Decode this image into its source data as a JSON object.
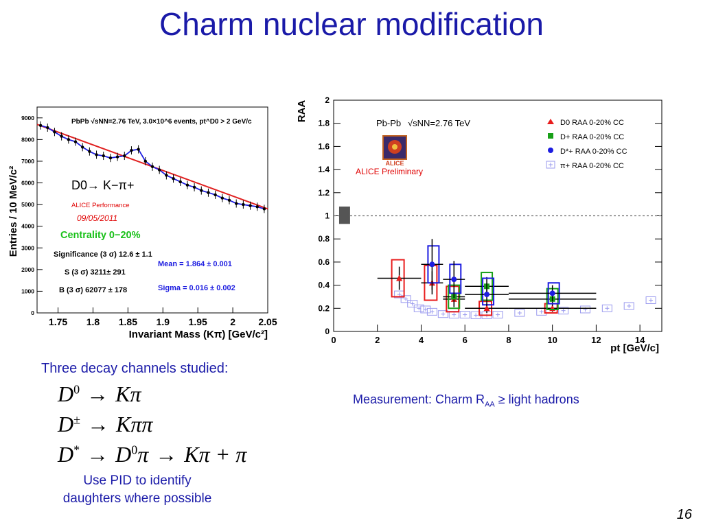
{
  "slide": {
    "title": "Charm nuclear modification",
    "page_number": "16",
    "channels_heading": "Three decay channels studied:",
    "measurement_prefix": "Measurement: Charm R",
    "measurement_sub": "AA",
    "measurement_suffix": " ≥ light hadrons",
    "pid_line1": "Use PID to identify",
    "pid_line2": "daughters where possible",
    "equations": [
      {
        "lhs": "D",
        "lhs_sup": "0",
        "rhs": "Kπ"
      },
      {
        "lhs": "D",
        "lhs_sup": "±",
        "rhs": "Kππ"
      },
      {
        "lhs": "D",
        "lhs_sup": "*",
        "rhs": "D",
        "rhs_sup": "0",
        "rhs_tail": "π",
        "rhs2": "Kπ + π"
      }
    ]
  },
  "chart_data": [
    {
      "type": "scatter",
      "title": "PbPb √sNN=2.76 TeV, 3.0×10^6 events, pt^D0 > 2 GeV/c",
      "xlabel": "Invariant Mass (Kπ) [GeV/c²]",
      "ylabel": "Entries / 10 MeV/c²",
      "xlim": [
        1.72,
        2.05
      ],
      "ylim": [
        0,
        9500
      ],
      "xticks": [
        "1.75",
        "1.8",
        "1.85",
        "1.9",
        "1.95",
        "2",
        "2.05"
      ],
      "yticks": [
        "0",
        "1000",
        "2000",
        "3000",
        "4000",
        "5000",
        "6000",
        "7000",
        "8000",
        "9000"
      ],
      "channel_label": "D0→ K−π+",
      "performance_label": "ALICE Performance",
      "date_label": "09/05/2011",
      "centrality_label": "Centrality 0−20%",
      "significance_label": "Significance (3 σ) 12.6 ± 1.1",
      "signal_label": "S (3 σ) 3211± 291",
      "background_label": "B (3 σ) 62077 ± 178",
      "mean_label": "Mean = 1.864 ± 0.001",
      "sigma_label": "Sigma = 0.016 ± 0.002",
      "series": [
        {
          "name": "data",
          "points": [
            [
              1.725,
              8650
            ],
            [
              1.735,
              8550
            ],
            [
              1.745,
              8350
            ],
            [
              1.755,
              8150
            ],
            [
              1.765,
              8000
            ],
            [
              1.775,
              7900
            ],
            [
              1.785,
              7650
            ],
            [
              1.795,
              7450
            ],
            [
              1.805,
              7300
            ],
            [
              1.815,
              7250
            ],
            [
              1.825,
              7150
            ],
            [
              1.835,
              7200
            ],
            [
              1.845,
              7250
            ],
            [
              1.855,
              7500
            ],
            [
              1.865,
              7550
            ],
            [
              1.875,
              7000
            ],
            [
              1.885,
              6750
            ],
            [
              1.895,
              6600
            ],
            [
              1.905,
              6350
            ],
            [
              1.915,
              6200
            ],
            [
              1.925,
              6050
            ],
            [
              1.935,
              5900
            ],
            [
              1.945,
              5800
            ],
            [
              1.955,
              5650
            ],
            [
              1.965,
              5550
            ],
            [
              1.975,
              5450
            ],
            [
              1.985,
              5300
            ],
            [
              1.995,
              5200
            ],
            [
              2.005,
              5050
            ],
            [
              2.015,
              5000
            ],
            [
              2.025,
              4950
            ],
            [
              2.035,
              4900
            ],
            [
              2.045,
              4800
            ]
          ]
        }
      ],
      "background_fit": [
        [
          1.72,
          8700
        ],
        [
          2.05,
          4800
        ]
      ]
    },
    {
      "type": "scatter",
      "xlabel": "pt [GeV/c]",
      "ylabel": "RAA",
      "xlim": [
        0,
        15
      ],
      "ylim": [
        0,
        2
      ],
      "xticks": [
        "0",
        "2",
        "4",
        "6",
        "8",
        "10",
        "12",
        "14"
      ],
      "yticks": [
        "0",
        "0.2",
        "0.4",
        "0.6",
        "0.8",
        "1",
        "1.2",
        "1.4",
        "1.6",
        "1.8",
        "2"
      ],
      "system_label": "Pb-Pb",
      "energy_label": "√sNN=2.76 TeV",
      "logo_text": "ALICE",
      "preliminary_label": "ALICE Preliminary",
      "reference_line": 1,
      "norm_uncertainty": {
        "x": [
          0.25,
          0.75
        ],
        "y": [
          0.93,
          1.08
        ]
      },
      "legend_position": "top-right",
      "series": [
        {
          "name": "D0 RAA 0-20% CC",
          "color": "#e81c1c",
          "marker": "triangle",
          "points": [
            {
              "x": 3,
              "y": 0.46,
              "xerr": 1,
              "yerr": 0.1,
              "sys": [
                0.3,
                0.62
              ]
            },
            {
              "x": 4.5,
              "y": 0.42,
              "xerr": 0.5,
              "yerr": 0.1,
              "sys": [
                0.27,
                0.57
              ]
            },
            {
              "x": 5.5,
              "y": 0.28,
              "xerr": 0.5,
              "yerr": 0.07,
              "sys": [
                0.17,
                0.39
              ]
            },
            {
              "x": 7,
              "y": 0.2,
              "xerr": 1,
              "yerr": 0.04,
              "sys": [
                0.14,
                0.26
              ]
            },
            {
              "x": 10,
              "y": 0.2,
              "xerr": 2,
              "yerr": 0.03,
              "sys": [
                0.16,
                0.24
              ]
            }
          ]
        },
        {
          "name": "D+ RAA 0-20% CC",
          "color": "#18a018",
          "marker": "square",
          "points": [
            {
              "x": 5.5,
              "y": 0.3,
              "xerr": 0.5,
              "yerr": 0.08,
              "sys": [
                0.2,
                0.4
              ]
            },
            {
              "x": 7,
              "y": 0.39,
              "xerr": 1,
              "yerr": 0.08,
              "sys": [
                0.27,
                0.51
              ]
            },
            {
              "x": 10,
              "y": 0.28,
              "xerr": 2,
              "yerr": 0.06,
              "sys": [
                0.19,
                0.37
              ]
            }
          ]
        },
        {
          "name": "D*+ RAA 0-20% CC",
          "color": "#1c1ce0",
          "marker": "circle",
          "points": [
            {
              "x": 4.5,
              "y": 0.58,
              "xerr": 0.5,
              "yerr": 0.22,
              "sys": [
                0.42,
                0.74
              ]
            },
            {
              "x": 5.5,
              "y": 0.45,
              "xerr": 0.5,
              "yerr": 0.16,
              "sys": [
                0.33,
                0.58
              ]
            },
            {
              "x": 7,
              "y": 0.32,
              "xerr": 1,
              "yerr": 0.1,
              "sys": [
                0.23,
                0.46
              ]
            },
            {
              "x": 10,
              "y": 0.33,
              "xerr": 2,
              "yerr": 0.07,
              "sys": [
                0.24,
                0.42
              ]
            }
          ]
        },
        {
          "name": "π+ RAA 0-20% CC",
          "color": "#9a9aee",
          "marker": "cross",
          "points": [
            {
              "x": 3,
              "y": 0.32
            },
            {
              "x": 3.3,
              "y": 0.28
            },
            {
              "x": 3.6,
              "y": 0.24
            },
            {
              "x": 3.9,
              "y": 0.2
            },
            {
              "x": 4.2,
              "y": 0.19
            },
            {
              "x": 4.5,
              "y": 0.17
            },
            {
              "x": 5,
              "y": 0.15
            },
            {
              "x": 5.5,
              "y": 0.145
            },
            {
              "x": 6,
              "y": 0.145
            },
            {
              "x": 6.5,
              "y": 0.14
            },
            {
              "x": 7,
              "y": 0.14
            },
            {
              "x": 7.5,
              "y": 0.145
            },
            {
              "x": 8.5,
              "y": 0.16
            },
            {
              "x": 9.5,
              "y": 0.17
            },
            {
              "x": 10.5,
              "y": 0.18
            },
            {
              "x": 11.5,
              "y": 0.19
            },
            {
              "x": 12.5,
              "y": 0.2
            },
            {
              "x": 13.5,
              "y": 0.22
            },
            {
              "x": 14.5,
              "y": 0.27
            }
          ]
        }
      ]
    }
  ]
}
